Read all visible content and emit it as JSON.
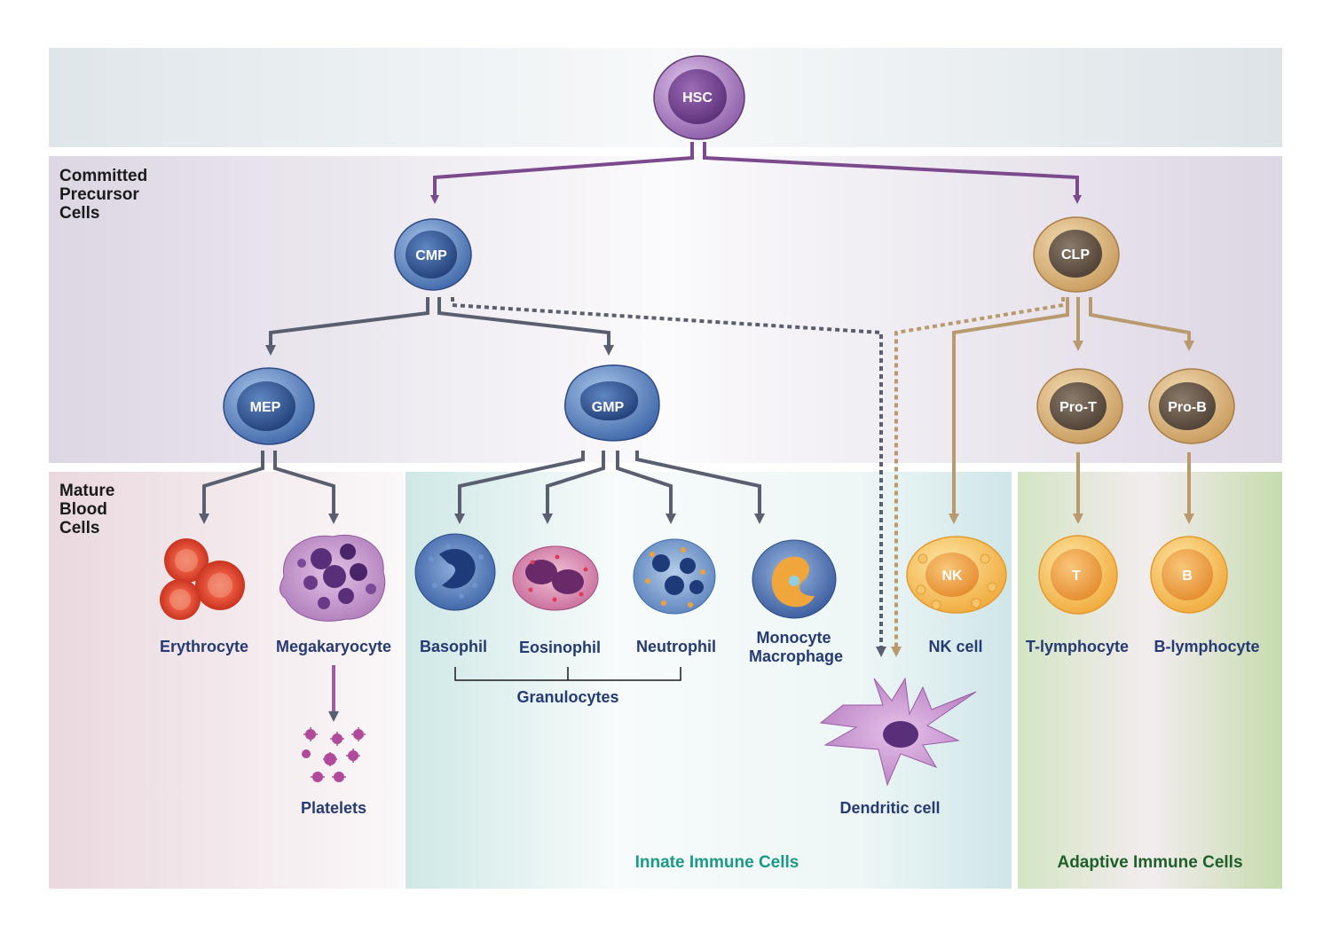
{
  "sections": {
    "committed": [
      "Committed",
      "Precursor",
      "Cells"
    ],
    "mature": [
      "Mature",
      "Blood",
      "Cells"
    ]
  },
  "progenitors": {
    "hsc": "HSC",
    "cmp": "CMP",
    "clp": "CLP",
    "mep": "MEP",
    "gmp": "GMP",
    "pro_t": "Pro-T",
    "pro_b": "Pro-B"
  },
  "mature_inner": {
    "nk": "NK",
    "t": "T",
    "b": "B"
  },
  "mature_labels": {
    "erythrocyte": "Erythrocyte",
    "megakaryocyte": "Megakaryocyte",
    "platelets": "Platelets",
    "basophil": "Basophil",
    "eosinophil": "Eosinophil",
    "neutrophil": "Neutrophil",
    "monocyte": [
      "Monocyte",
      "Macrophage"
    ],
    "nk_cell": "NK cell",
    "t_lymphocyte": "T-lymphocyte",
    "b_lymphocyte": "B-lymphocyte",
    "dendritic": "Dendritic cell",
    "granulocytes": "Granulocytes"
  },
  "groups": {
    "innate": "Innate Immune Cells",
    "adaptive": "Adaptive Immune Cells"
  },
  "colors": {
    "hsc_arrow": "#7a4a8c",
    "myeloid_arrow": "#5a5f70",
    "lymphoid_arrow": "#b89a6e",
    "label_blue": "#263a73",
    "innate_green": "#1a9a86",
    "adaptive_green": "#1f5f2a"
  }
}
